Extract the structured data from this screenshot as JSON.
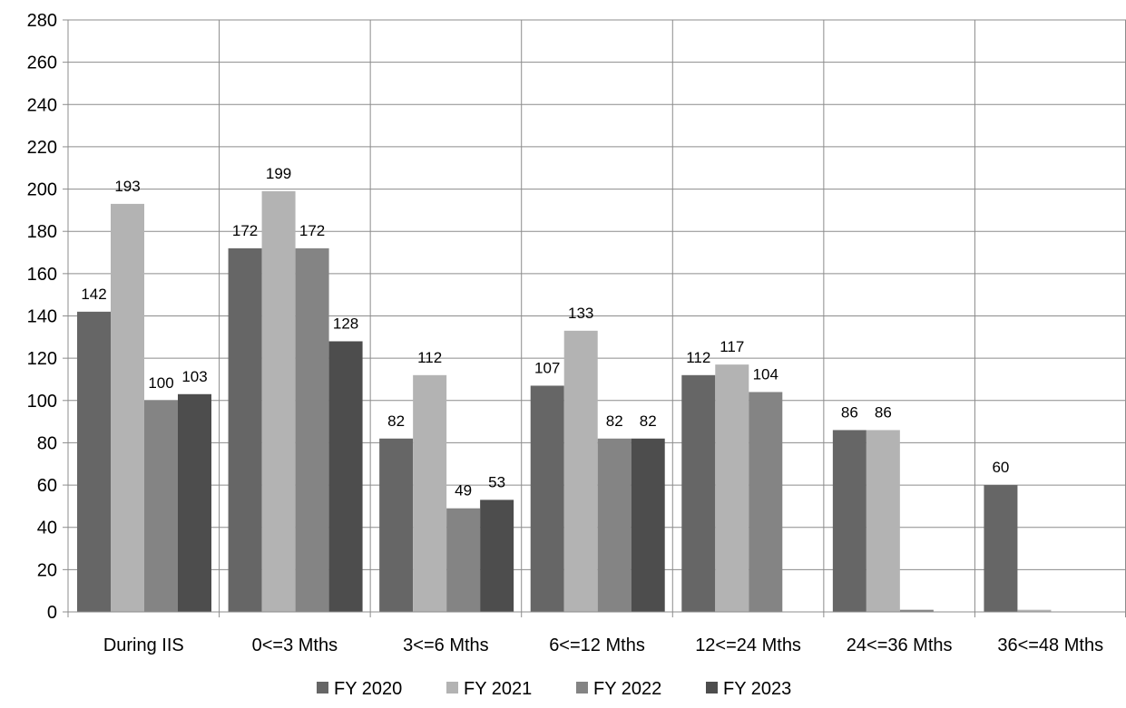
{
  "chart_data": {
    "type": "bar",
    "categories": [
      "During IIS",
      "0<=3 Mths",
      "3<=6 Mths",
      "6<=12 Mths",
      "12<=24 Mths",
      "24<=36 Mths",
      "36<=48 Mths"
    ],
    "series": [
      {
        "name": "FY 2020",
        "color": "#666666",
        "values": [
          142,
          172,
          82,
          107,
          112,
          86,
          60
        ],
        "labels": [
          "142",
          "172",
          "82",
          "107",
          "112",
          "86",
          "60"
        ]
      },
      {
        "name": "FY 2021",
        "color": "#b3b3b3",
        "values": [
          193,
          199,
          112,
          133,
          117,
          86,
          1
        ],
        "labels": [
          "193",
          "199",
          "112",
          "133",
          "117",
          "86",
          ""
        ]
      },
      {
        "name": "FY 2022",
        "color": "#848484",
        "values": [
          100,
          172,
          49,
          82,
          104,
          1,
          0
        ],
        "labels": [
          "100",
          "172",
          "49",
          "82",
          "104",
          "",
          ""
        ]
      },
      {
        "name": "FY 2023",
        "color": "#4d4d4d",
        "values": [
          103,
          128,
          53,
          82,
          0,
          0,
          0
        ],
        "labels": [
          "103",
          "128",
          "53",
          "82",
          "",
          "",
          ""
        ]
      }
    ],
    "ylim": [
      0,
      280
    ],
    "yticks": [
      "0",
      "20",
      "40",
      "60",
      "80",
      "100",
      "120",
      "140",
      "160",
      "180",
      "200",
      "220",
      "240",
      "260",
      "280"
    ],
    "grid": true,
    "legend_position": "bottom",
    "title": "",
    "xlabel": "",
    "ylabel": ""
  }
}
